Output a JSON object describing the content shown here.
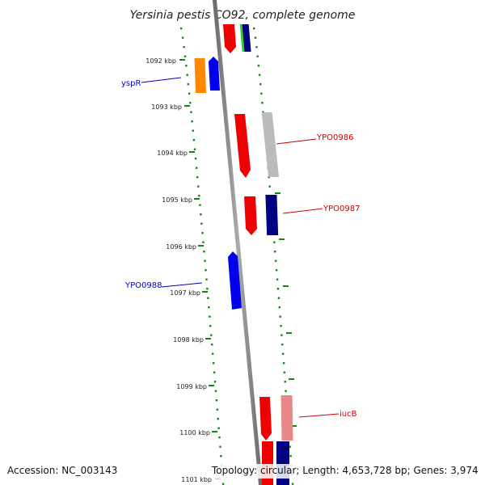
{
  "title": "Yersinia pestis CO92, complete genome",
  "footer": {
    "accession": "Accession: NC_003143",
    "summary": "Topology: circular; Length: 4,653,728 bp; Genes: 3,974"
  },
  "ticks": [
    "1092 kbp",
    "1093 kbp",
    "1094 kbp",
    "1095 kbp",
    "1096 kbp",
    "1097 kbp",
    "1098 kbp",
    "1099 kbp",
    "1100 kbp",
    "1101 kbp"
  ],
  "gene_labels": [
    {
      "text": "yspR",
      "color": "#0000cc"
    },
    {
      "text": "YPO0986",
      "color": "#cc0000"
    },
    {
      "text": "YPO0987",
      "color": "#cc0000"
    },
    {
      "text": "YPO0988",
      "color": "#0000cc"
    },
    {
      "text": "iucB",
      "color": "#cc0000"
    }
  ],
  "colors": {
    "red": "#ee0000",
    "blue": "#0000ee",
    "navy": "#000080",
    "orange": "#ff8800",
    "green": "#33cc33",
    "grey": "#bbbbbb",
    "pink": "#e88888",
    "tick": "#118811",
    "backbone": "#888888"
  }
}
